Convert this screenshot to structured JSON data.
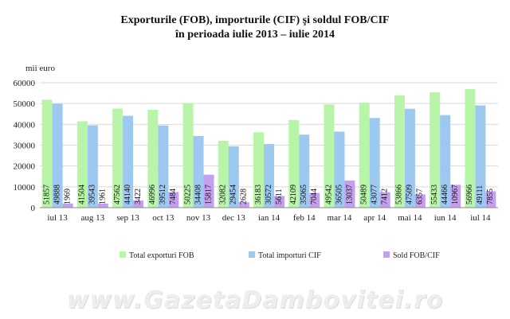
{
  "chart_data": {
    "type": "bar",
    "title": "Exporturile (FOB), importurile (CIF) şi soldul FOB/CIF",
    "subtitle": "în perioada iulie 2013 – iulie 2014",
    "ylabel": "mii euro",
    "ylim": [
      0,
      60000
    ],
    "yticks": [
      "0",
      "10000",
      "20000",
      "30000",
      "40000",
      "50000",
      "60000"
    ],
    "grid": true,
    "legend_position": "bottom",
    "categories": [
      "iul 13",
      "aug 13",
      "sep 13",
      "oct 13",
      "nov 13",
      "dec 13",
      "ian 14",
      "feb 14",
      "mar 14",
      "apr 14",
      "mai 14",
      "iun 14",
      "iul 14"
    ],
    "series": [
      {
        "name": "Total exporturi FOB",
        "color": "#b8f5a8",
        "values": [
          51857,
          41504,
          47562,
          46996,
          50225,
          32082,
          36183,
          42109,
          49542,
          50489,
          53866,
          55433,
          56966
        ]
      },
      {
        "name": "Total importuri CIF",
        "color": "#9dc8ef",
        "values": [
          49888,
          39543,
          44140,
          39512,
          34408,
          29454,
          30572,
          35065,
          36505,
          43077,
          47509,
          44466,
          49111
        ]
      },
      {
        "name": "Sold FOB/CIF",
        "color": "#c49ff0",
        "values": [
          1969,
          1961,
          3422,
          7484,
          15817,
          2628,
          5611,
          7044,
          13037,
          7412,
          6357,
          10967,
          7855
        ]
      }
    ],
    "label_texts": [
      [
        "51857",
        "41504",
        "47562",
        "46996",
        "50225",
        "32082",
        "36183",
        "42109",
        "49542",
        "50489",
        "53866",
        "55433",
        "56966"
      ],
      [
        "49888",
        "39543",
        "44140",
        "39512",
        "34408",
        "29454",
        "30572",
        "35065",
        "36505",
        "43077",
        "47509",
        "44466",
        "49111"
      ],
      [
        "1969",
        "1961",
        "3422",
        "7484",
        "15817",
        "2628",
        "5611",
        "7044",
        "13037",
        "7412",
        "6357",
        "10967",
        "7855"
      ]
    ]
  },
  "watermark": "www.GazetaDambovitei.ro"
}
